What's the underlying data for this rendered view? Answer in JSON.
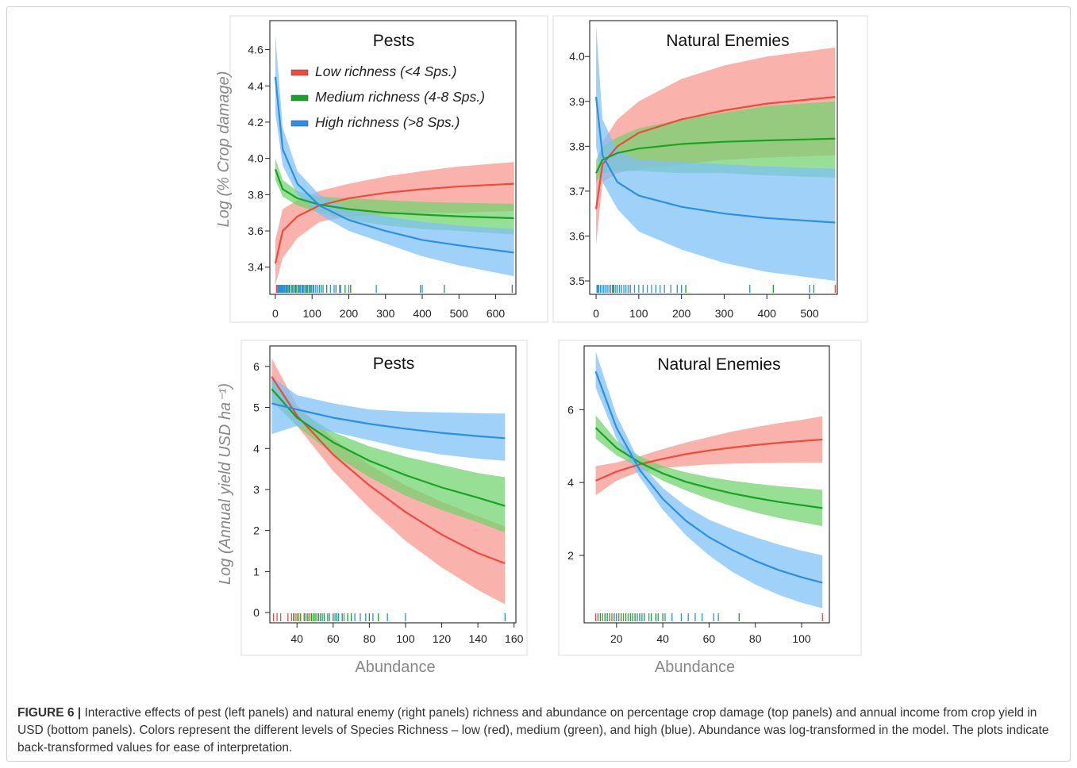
{
  "colors": {
    "low": "#ef4a3c",
    "low_band": "#f6958c",
    "medium": "#17a324",
    "medium_band": "#6fd26c",
    "high": "#2b8fe6",
    "high_band": "#7cc1f7"
  },
  "caption": {
    "label": "FIGURE 6 |",
    "text": " Interactive effects of pest (left panels) and natural enemy (right panels) richness and abundance on percentage crop damage (top panels) and annual income from crop yield in USD (bottom panels). Colors represent the different levels of Species Richness – low (red), medium (green), and high (blue). Abundance was log-transformed in the model. The plots indicate back-transformed values for ease of interpretation."
  },
  "chart_data": [
    {
      "type": "line",
      "title": "Pests",
      "ylabel": "Log (% Crop damage)",
      "xlabel": "",
      "xlim": [
        -15,
        655
      ],
      "ylim": [
        3.25,
        4.76
      ],
      "xticks": [
        0,
        100,
        200,
        300,
        400,
        500,
        600
      ],
      "yticks": [
        3.4,
        3.6,
        3.8,
        4.0,
        4.2,
        4.4,
        4.6
      ],
      "legend": {
        "position": "top-left",
        "labels": [
          "Low richness (<4 Sps.)",
          "Medium richness (4-8 Sps.)",
          "High richness (>8 Sps.)"
        ]
      },
      "series": [
        {
          "name": "Low richness (<4 Sps.)",
          "color_key": "low",
          "x": [
            0,
            20,
            60,
            120,
            200,
            300,
            400,
            500,
            650
          ],
          "y": [
            3.42,
            3.6,
            3.68,
            3.74,
            3.78,
            3.81,
            3.83,
            3.845,
            3.86
          ],
          "lower": [
            3.3,
            3.45,
            3.56,
            3.65,
            3.68,
            3.69,
            3.7,
            3.7,
            3.71
          ],
          "upper": [
            3.55,
            3.72,
            3.77,
            3.82,
            3.86,
            3.9,
            3.93,
            3.955,
            3.98
          ]
        },
        {
          "name": "Medium richness (4-8 Sps.)",
          "color_key": "medium",
          "x": [
            0,
            20,
            60,
            120,
            200,
            300,
            400,
            500,
            650
          ],
          "y": [
            3.94,
            3.83,
            3.78,
            3.745,
            3.72,
            3.7,
            3.69,
            3.68,
            3.67
          ],
          "lower": [
            3.88,
            3.79,
            3.74,
            3.7,
            3.66,
            3.63,
            3.61,
            3.6,
            3.58
          ],
          "upper": [
            4.0,
            3.88,
            3.82,
            3.79,
            3.78,
            3.77,
            3.76,
            3.755,
            3.75
          ]
        },
        {
          "name": "High richness (>8 Sps.)",
          "color_key": "high",
          "x": [
            0,
            20,
            60,
            120,
            200,
            300,
            400,
            500,
            650
          ],
          "y": [
            4.45,
            4.05,
            3.86,
            3.74,
            3.66,
            3.6,
            3.55,
            3.52,
            3.48
          ],
          "lower": [
            4.25,
            3.96,
            3.8,
            3.69,
            3.6,
            3.53,
            3.46,
            3.41,
            3.35
          ],
          "upper": [
            4.68,
            4.17,
            3.93,
            3.8,
            3.72,
            3.68,
            3.65,
            3.63,
            3.61
          ]
        }
      ],
      "rug": [
        {
          "color_key": "low",
          "x": [
            3,
            6,
            10,
            14,
            18
          ]
        },
        {
          "color_key": "medium",
          "x": [
            22,
            30,
            38,
            45,
            55,
            65,
            75,
            85,
            95,
            105,
            125,
            140,
            165,
            190,
            205,
            460,
            645
          ]
        },
        {
          "color_key": "high",
          "x": [
            8,
            12,
            16,
            20,
            25,
            28,
            32,
            35,
            40,
            48,
            52,
            58,
            62,
            68,
            72,
            78,
            82,
            88,
            92,
            98,
            102,
            110,
            115,
            120,
            130,
            150,
            160,
            175,
            178,
            200,
            275,
            395,
            400
          ]
        }
      ]
    },
    {
      "type": "line",
      "title": "Natural Enemies",
      "ylabel": "",
      "xlabel": "",
      "xlim": [
        -15,
        565
      ],
      "ylim": [
        3.47,
        4.08
      ],
      "xticks": [
        0,
        100,
        200,
        300,
        400,
        500
      ],
      "yticks": [
        3.5,
        3.6,
        3.7,
        3.8,
        3.9,
        4.0
      ],
      "series": [
        {
          "name": "Low richness (<4 Sps.)",
          "color_key": "low",
          "x": [
            0,
            15,
            50,
            100,
            200,
            300,
            400,
            560
          ],
          "y": [
            3.66,
            3.76,
            3.8,
            3.83,
            3.86,
            3.88,
            3.895,
            3.91
          ],
          "lower": [
            3.58,
            3.72,
            3.74,
            3.75,
            3.76,
            3.77,
            3.775,
            3.78
          ],
          "upper": [
            3.74,
            3.81,
            3.86,
            3.9,
            3.95,
            3.98,
            4.0,
            4.02
          ]
        },
        {
          "name": "Medium richness (4-8 Sps.)",
          "color_key": "medium",
          "x": [
            0,
            15,
            50,
            100,
            200,
            300,
            400,
            560
          ],
          "y": [
            3.74,
            3.77,
            3.785,
            3.795,
            3.805,
            3.81,
            3.813,
            3.817
          ],
          "lower": [
            3.72,
            3.74,
            3.745,
            3.745,
            3.74,
            3.74,
            3.735,
            3.73
          ],
          "upper": [
            3.77,
            3.8,
            3.82,
            3.84,
            3.86,
            3.875,
            3.89,
            3.9
          ]
        },
        {
          "name": "High richness (>8 Sps.)",
          "color_key": "high",
          "x": [
            0,
            15,
            50,
            100,
            200,
            300,
            400,
            560
          ],
          "y": [
            3.91,
            3.78,
            3.72,
            3.69,
            3.665,
            3.65,
            3.64,
            3.63
          ],
          "lower": [
            3.8,
            3.72,
            3.66,
            3.61,
            3.57,
            3.54,
            3.52,
            3.5
          ],
          "upper": [
            4.07,
            3.86,
            3.79,
            3.77,
            3.765,
            3.76,
            3.755,
            3.75
          ]
        }
      ],
      "rug": [
        {
          "color_key": "low",
          "x": [
            2,
            5,
            560
          ]
        },
        {
          "color_key": "medium",
          "x": [
            40,
            80,
            210,
            415,
            510
          ]
        },
        {
          "color_key": "high",
          "x": [
            3,
            6,
            10,
            14,
            18,
            22,
            26,
            30,
            34,
            38,
            42,
            46,
            50,
            55,
            60,
            65,
            70,
            75,
            80,
            90,
            100,
            110,
            120,
            130,
            140,
            150,
            160,
            175,
            190,
            200,
            360,
            500
          ]
        }
      ]
    },
    {
      "type": "line",
      "title": "Pests",
      "ylabel": "Log (Annual yield USD ha⁻¹)",
      "xlabel": "Abundance",
      "xlim": [
        25,
        161
      ],
      "ylim": [
        -0.25,
        6.5
      ],
      "xticks": [
        40,
        60,
        80,
        100,
        120,
        140,
        160
      ],
      "yticks": [
        0,
        1,
        2,
        3,
        4,
        5,
        6
      ],
      "series": [
        {
          "name": "Low richness (<4 Sps.)",
          "color_key": "low",
          "x": [
            26,
            40,
            60,
            80,
            100,
            120,
            140,
            155
          ],
          "y": [
            5.75,
            4.8,
            3.85,
            3.1,
            2.45,
            1.9,
            1.45,
            1.2
          ],
          "lower": [
            5.35,
            4.55,
            3.45,
            2.55,
            1.75,
            1.1,
            0.55,
            0.2
          ],
          "upper": [
            6.2,
            5.05,
            4.25,
            3.6,
            3.1,
            2.7,
            2.35,
            2.1
          ]
        },
        {
          "name": "Medium richness (4-8 Sps.)",
          "color_key": "medium",
          "x": [
            26,
            40,
            60,
            80,
            100,
            120,
            140,
            155
          ],
          "y": [
            5.45,
            4.75,
            4.15,
            3.7,
            3.35,
            3.05,
            2.8,
            2.6
          ],
          "lower": [
            5.15,
            4.55,
            3.85,
            3.3,
            2.85,
            2.5,
            2.2,
            1.95
          ],
          "upper": [
            5.75,
            4.95,
            4.4,
            4.05,
            3.8,
            3.6,
            3.4,
            3.3
          ]
        },
        {
          "name": "High richness (>8 Sps.)",
          "color_key": "high",
          "x": [
            26,
            40,
            60,
            80,
            100,
            120,
            140,
            155
          ],
          "y": [
            5.1,
            4.95,
            4.75,
            4.6,
            4.48,
            4.38,
            4.3,
            4.25
          ],
          "lower": [
            4.35,
            4.55,
            4.4,
            4.2,
            4.0,
            3.85,
            3.75,
            3.7
          ],
          "upper": [
            5.75,
            5.3,
            5.1,
            4.95,
            4.9,
            4.88,
            4.86,
            4.85
          ]
        }
      ],
      "rug": [
        {
          "color_key": "low",
          "x": [
            27,
            29,
            31,
            35,
            37,
            39,
            41,
            44,
            47
          ]
        },
        {
          "color_key": "medium",
          "x": [
            38,
            40,
            42,
            44,
            45,
            46,
            48,
            49,
            50,
            51,
            52,
            53,
            55,
            57,
            60,
            62,
            65,
            68,
            70,
            80,
            85
          ]
        },
        {
          "color_key": "high",
          "x": [
            54,
            58,
            61,
            63,
            66,
            72,
            75,
            78,
            82,
            90,
            100,
            155
          ]
        }
      ]
    },
    {
      "type": "line",
      "title": "Natural Enemies",
      "ylabel": "",
      "xlabel": "Abundance",
      "xlim": [
        6,
        112
      ],
      "ylim": [
        0.15,
        7.75
      ],
      "xticks": [
        20,
        40,
        60,
        80,
        100
      ],
      "yticks": [
        2,
        4,
        6
      ],
      "series": [
        {
          "name": "Low richness (<4 Sps.)",
          "color_key": "low",
          "x": [
            11,
            20,
            30,
            40,
            50,
            60,
            70,
            80,
            90,
            100,
            109
          ],
          "y": [
            4.05,
            4.3,
            4.5,
            4.65,
            4.78,
            4.88,
            4.96,
            5.03,
            5.09,
            5.14,
            5.18
          ],
          "lower": [
            3.65,
            4.05,
            4.3,
            4.4,
            4.45,
            4.5,
            4.52,
            4.53,
            4.54,
            4.55,
            4.55
          ],
          "upper": [
            4.45,
            4.55,
            4.72,
            4.92,
            5.1,
            5.25,
            5.4,
            5.52,
            5.63,
            5.72,
            5.82
          ]
        },
        {
          "name": "Medium richness (4-8 Sps.)",
          "color_key": "medium",
          "x": [
            11,
            20,
            30,
            40,
            50,
            60,
            70,
            80,
            90,
            100,
            109
          ],
          "y": [
            5.5,
            4.95,
            4.55,
            4.25,
            4.02,
            3.85,
            3.7,
            3.58,
            3.47,
            3.38,
            3.3
          ],
          "lower": [
            5.2,
            4.75,
            4.4,
            4.05,
            3.78,
            3.55,
            3.35,
            3.18,
            3.03,
            2.91,
            2.8
          ],
          "upper": [
            5.85,
            5.15,
            4.72,
            4.45,
            4.28,
            4.15,
            4.05,
            3.97,
            3.9,
            3.85,
            3.8
          ]
        },
        {
          "name": "High richness (>8 Sps.)",
          "color_key": "high",
          "x": [
            11,
            20,
            30,
            40,
            50,
            60,
            70,
            80,
            90,
            100,
            109
          ],
          "y": [
            7.05,
            5.5,
            4.35,
            3.55,
            2.95,
            2.5,
            2.15,
            1.85,
            1.6,
            1.4,
            1.25
          ],
          "lower": [
            6.6,
            5.2,
            4.15,
            3.25,
            2.55,
            2.0,
            1.55,
            1.2,
            0.92,
            0.7,
            0.55
          ],
          "upper": [
            7.6,
            5.85,
            4.55,
            3.85,
            3.35,
            2.98,
            2.72,
            2.5,
            2.3,
            2.13,
            2.0
          ]
        }
      ],
      "rug": [
        {
          "color_key": "low",
          "x": [
            11,
            12,
            14,
            16,
            18,
            20,
            21,
            23,
            109
          ]
        },
        {
          "color_key": "medium",
          "x": [
            13,
            15,
            17,
            19,
            22,
            24,
            26,
            27,
            28,
            30,
            32,
            35,
            37,
            40,
            73
          ]
        },
        {
          "color_key": "high",
          "x": [
            12,
            16,
            20,
            25,
            29,
            31,
            34,
            38,
            41,
            44,
            48,
            51,
            54,
            57,
            62,
            64
          ]
        }
      ]
    }
  ]
}
